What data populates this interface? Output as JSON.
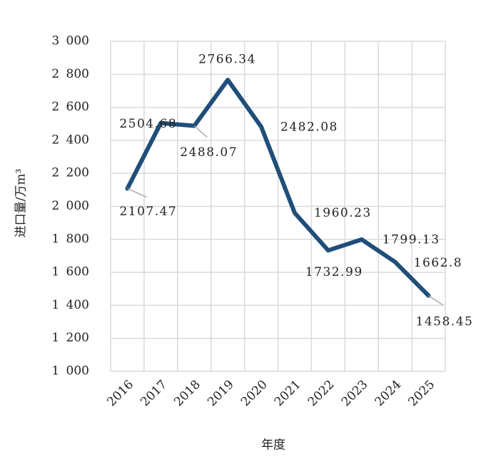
{
  "chart_data": {
    "type": "line",
    "x_label": "年度",
    "y_label": "进口量/万m³",
    "categories": [
      "2016",
      "2017",
      "2018",
      "2019",
      "2020",
      "2021",
      "2022",
      "2023",
      "2024",
      "2025"
    ],
    "series": [
      {
        "name": "进口量",
        "color": "#1f4e79",
        "values": [
          2107.47,
          2504.68,
          2488.07,
          2766.34,
          2482.08,
          1960.23,
          1732.99,
          1799.13,
          1662.8,
          1458.45
        ]
      }
    ],
    "ylim": [
      1000,
      3000
    ],
    "yticks": [
      {
        "value": 1000,
        "label": "1 000"
      },
      {
        "value": 1200,
        "label": "1 200"
      },
      {
        "value": 1400,
        "label": "1 400"
      },
      {
        "value": 1600,
        "label": "1 600"
      },
      {
        "value": 1800,
        "label": "1 800"
      },
      {
        "value": 2000,
        "label": "2 000"
      },
      {
        "value": 2200,
        "label": "2 200"
      },
      {
        "value": 2400,
        "label": "2 400"
      },
      {
        "value": 2600,
        "label": "2 600"
      },
      {
        "value": 2800,
        "label": "2 800"
      },
      {
        "value": 3000,
        "label": "3 000"
      }
    ],
    "grid": true
  }
}
